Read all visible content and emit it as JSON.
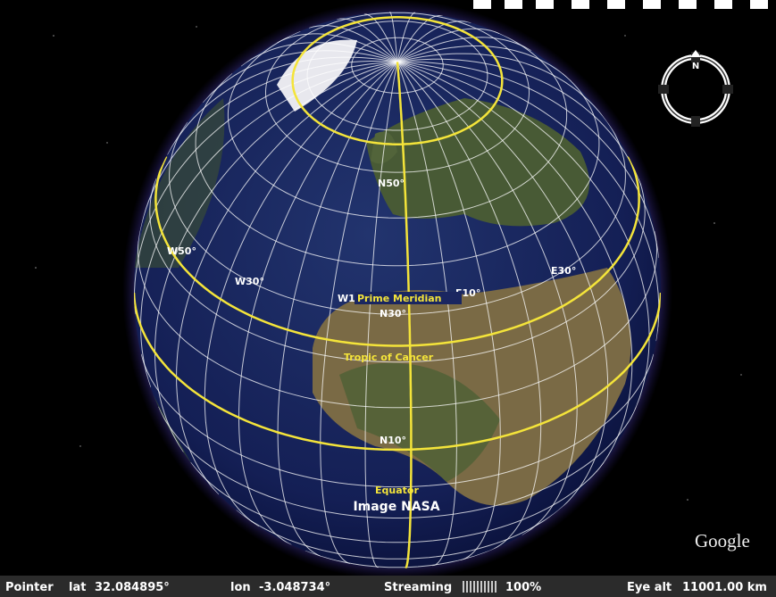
{
  "grid_labels": [
    "W50°",
    "W30°",
    "W10°",
    "E10°",
    "E30°",
    "N50°",
    "N30°",
    "N10°"
  ],
  "line_labels": [
    "Prime Meridian",
    "Tropic of Cancer",
    "Equator"
  ],
  "imagery_credit": "Image NASA",
  "logo": "Google",
  "compass": "N",
  "status_bar": {
    "pointer": "Pointer",
    "lat_label": "lat",
    "lat": "32.084895°",
    "lon_label": "lon",
    "lon": "-3.048734°",
    "streaming": "Streaming",
    "streaming_percent": "100%",
    "eye_alt_label": "Eye alt",
    "eye_alt": "11001.00 km"
  }
}
